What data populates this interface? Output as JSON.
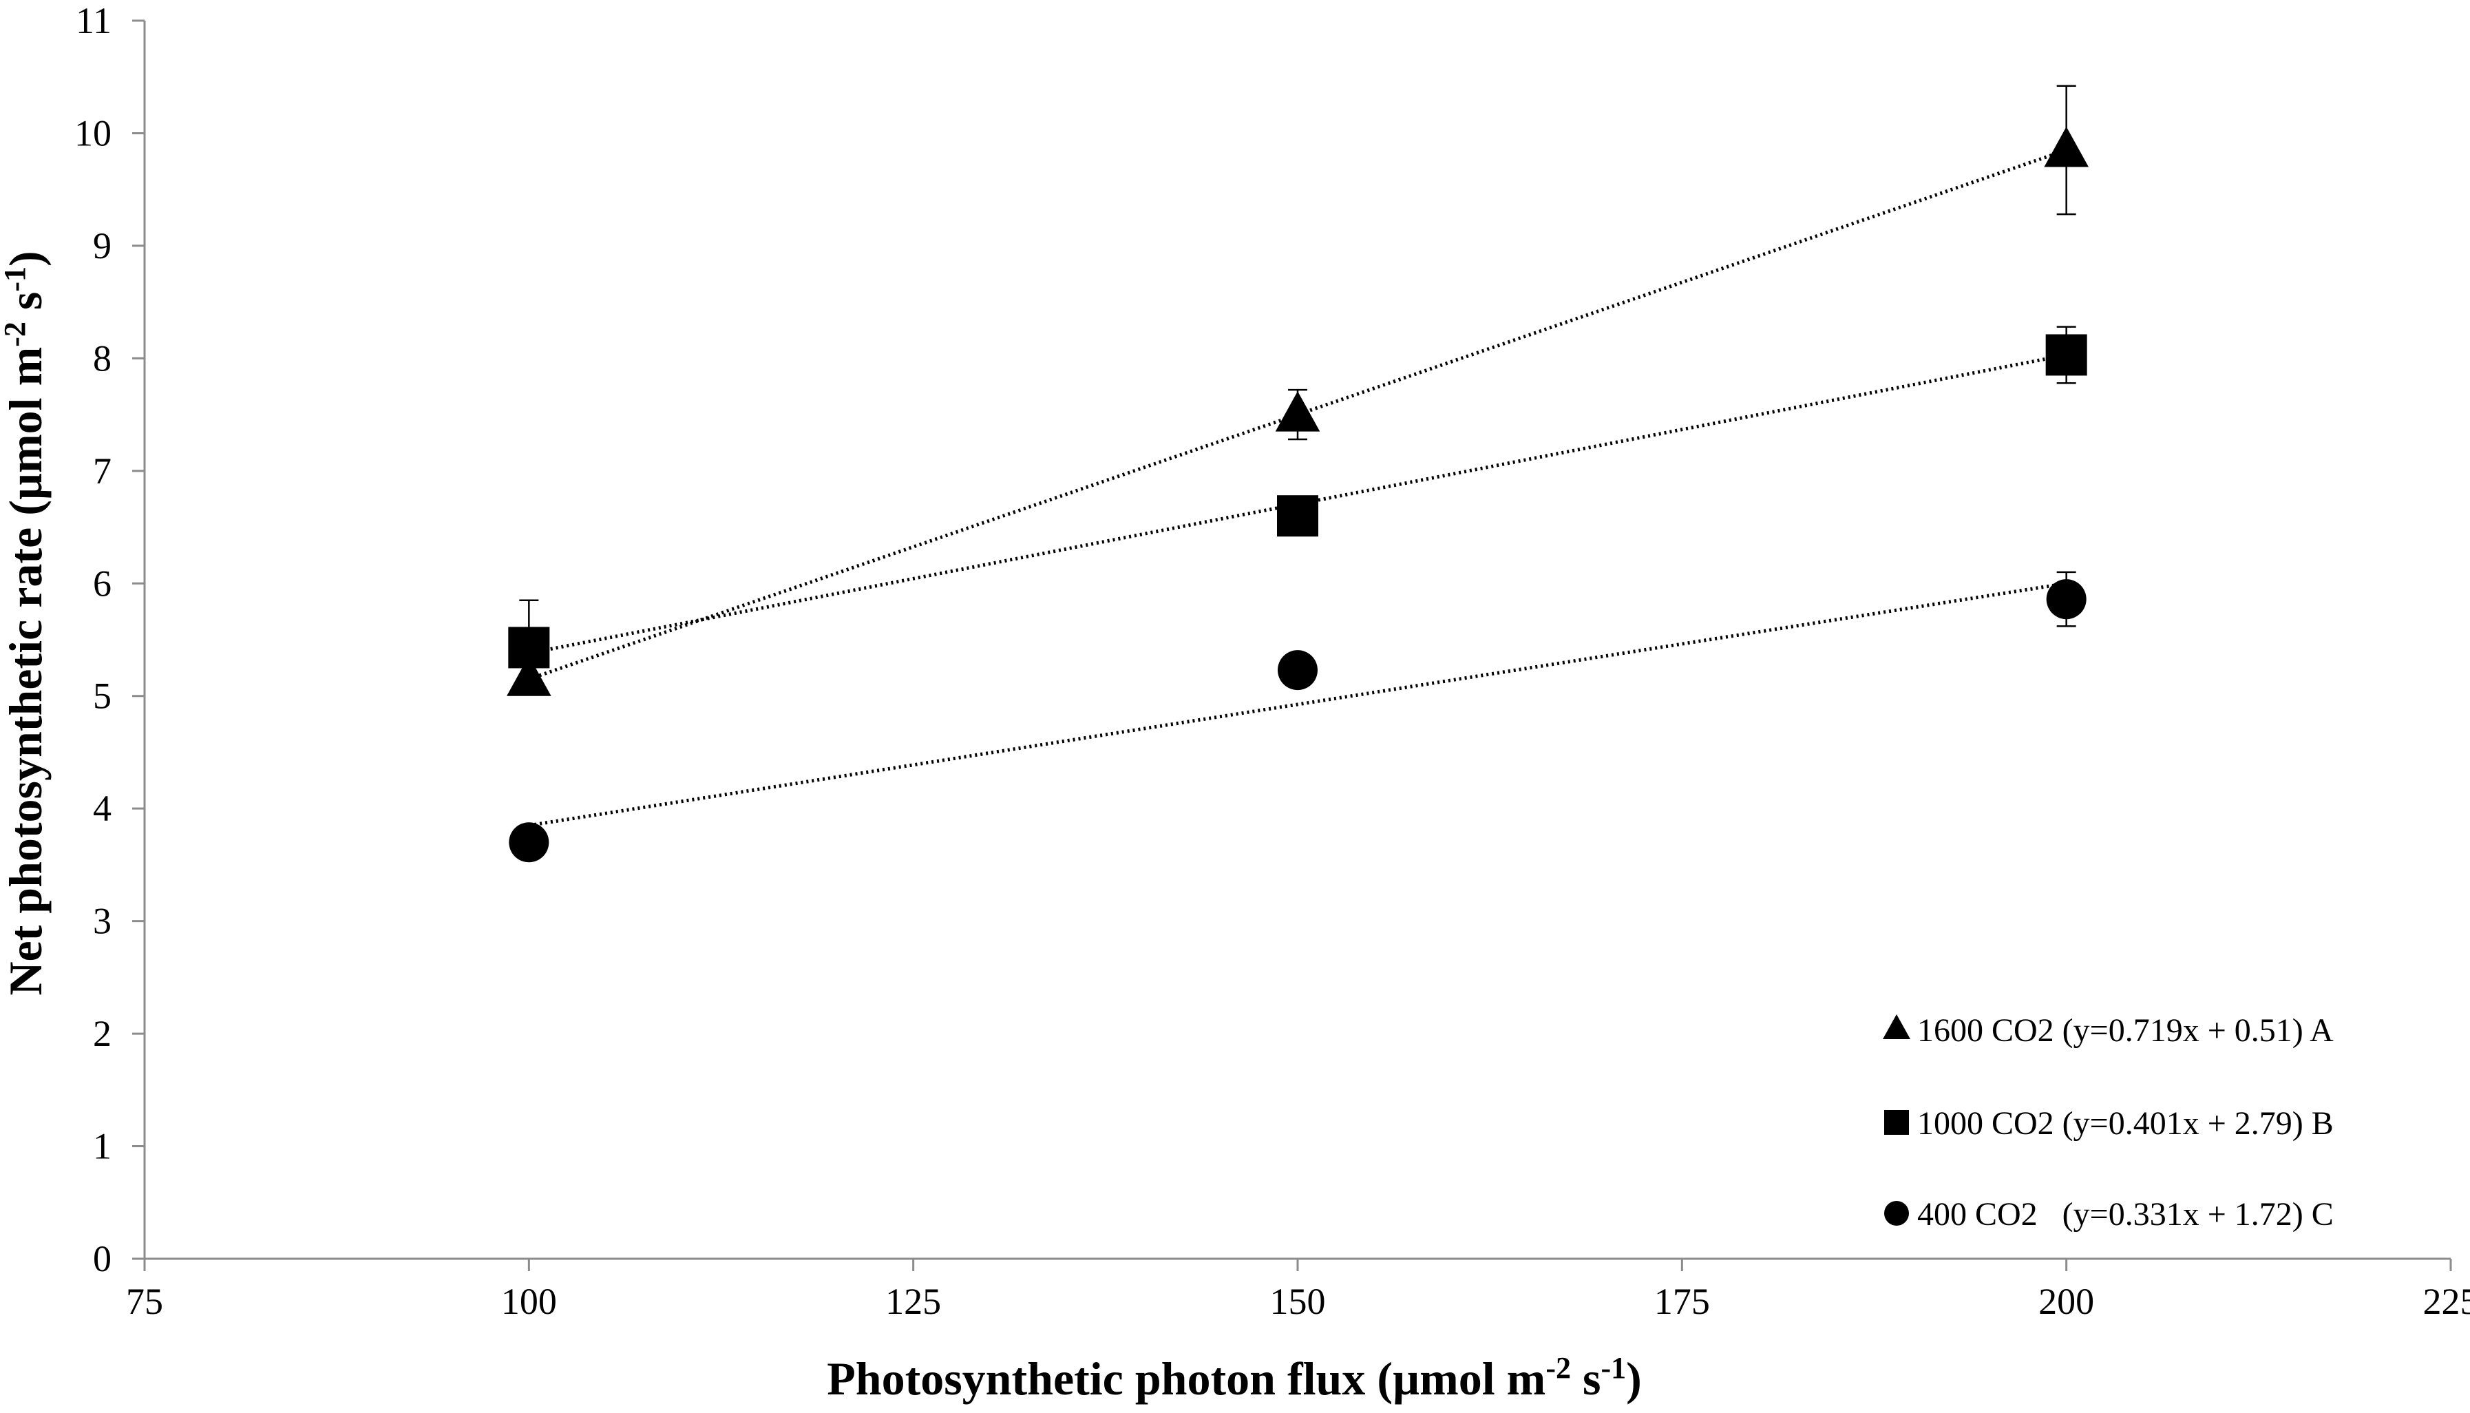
{
  "chart_data": {
    "type": "scatter",
    "xlabel": "Photosynthetic photon flux (µmol m",
    "xlabel_sup1": "-2",
    "xlabel_mid": " s",
    "xlabel_sup2": "-1",
    "xlabel_end": ")",
    "ylabel": "Net photosynthetic rate  (µmol m",
    "ylabel_sup1": "-2",
    "ylabel_mid": " s",
    "ylabel_sup2": "-1",
    "ylabel_end": ")",
    "xlim": [
      75,
      225
    ],
    "ylim": [
      0,
      11
    ],
    "xticks": [
      "75",
      "100",
      "125",
      "150",
      "175",
      "200",
      "225"
    ],
    "yticks": [
      "0",
      "1",
      "2",
      "3",
      "4",
      "5",
      "6",
      "7",
      "8",
      "9",
      "10",
      "11"
    ],
    "grid": false,
    "legend_position": "bottom-right",
    "series": [
      {
        "name": "1600 CO2 (y=0.719x + 0.51) A",
        "marker": "triangle",
        "x": [
          100,
          150,
          200
        ],
        "y": [
          5.15,
          7.5,
          9.85
        ],
        "err": [
          0.13,
          0.22,
          0.57
        ],
        "trend": {
          "y_start": 5.15,
          "y_end": 9.85
        }
      },
      {
        "name": "1000 CO2 (y=0.401x + 2.79) B",
        "marker": "square",
        "x": [
          100,
          150,
          200
        ],
        "y": [
          5.43,
          6.6,
          8.03
        ],
        "err": [
          0.42,
          0.16,
          0.25
        ],
        "trend": {
          "y_start": 5.38,
          "y_end": 8.03
        }
      },
      {
        "name": "400 CO2   (y=0.331x + 1.72) C",
        "marker": "circle",
        "x": [
          100,
          150,
          200
        ],
        "y": [
          3.7,
          5.23,
          5.86
        ],
        "err": [
          0.13,
          0.14,
          0.24
        ],
        "trend": {
          "y_start": 3.85,
          "y_end": 6.0
        }
      }
    ]
  }
}
